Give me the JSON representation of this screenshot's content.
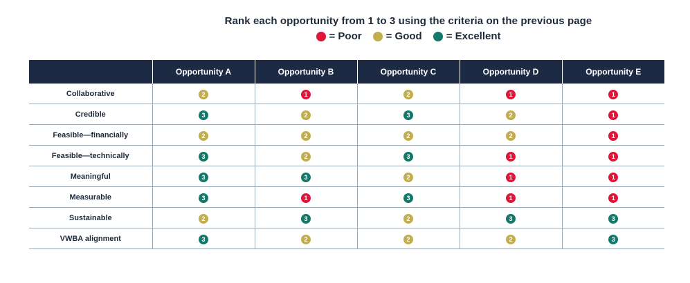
{
  "title": "Rank each opportunity from 1 to 3 using the criteria on the previous page",
  "legend": [
    {
      "label": "= Poor",
      "color": "#e0153a"
    },
    {
      "label": "= Good",
      "color": "#c2ae4e"
    },
    {
      "label": "= Excellent",
      "color": "#12796b"
    }
  ],
  "score_colors": {
    "1": "#e0153a",
    "2": "#c2ae4e",
    "3": "#12796b"
  },
  "table": {
    "headers": [
      "",
      "Opportunity A",
      "Opportunity B",
      "Opportunity C",
      "Opportunity D",
      "Opportunity E"
    ],
    "rows": [
      {
        "criterion": "Collaborative",
        "scores": [
          "2",
          "1",
          "2",
          "1",
          "1"
        ]
      },
      {
        "criterion": "Credible",
        "scores": [
          "3",
          "2",
          "3",
          "2",
          "1"
        ]
      },
      {
        "criterion": "Feasible—financially",
        "scores": [
          "2",
          "2",
          "2",
          "2",
          "1"
        ]
      },
      {
        "criterion": "Feasible—technically",
        "scores": [
          "3",
          "2",
          "3",
          "1",
          "1"
        ]
      },
      {
        "criterion": "Meaningful",
        "scores": [
          "3",
          "3",
          "2",
          "1",
          "1"
        ]
      },
      {
        "criterion": "Measurable",
        "scores": [
          "3",
          "1",
          "3",
          "1",
          "1"
        ]
      },
      {
        "criterion": "Sustainable",
        "scores": [
          "2",
          "3",
          "2",
          "3",
          "3"
        ]
      },
      {
        "criterion": "VWBA alignment",
        "scores": [
          "3",
          "2",
          "2",
          "2",
          "3"
        ]
      }
    ]
  }
}
